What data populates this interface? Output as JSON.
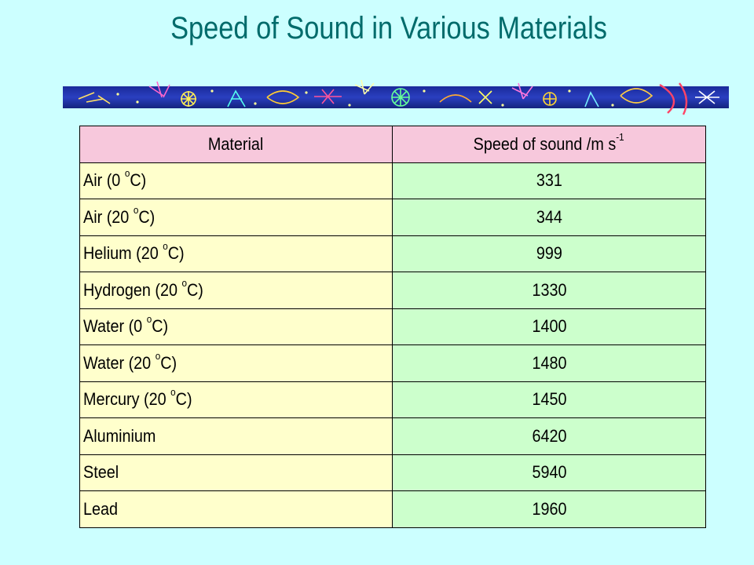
{
  "title": "Speed of Sound in Various Materials",
  "colors": {
    "background": "#ccffff",
    "title": "#006b6b",
    "header_bg": "#f7c8dc",
    "material_bg": "#ffffcc",
    "value_bg": "#ccffcc"
  },
  "table": {
    "headers": {
      "material": "Material",
      "speed_main": "Speed of sound /m s",
      "speed_sup": "-1"
    },
    "rows": [
      {
        "name": "Air (0 ",
        "deg": "o",
        "unit": "C)",
        "value": "331"
      },
      {
        "name": "Air (20 ",
        "deg": "o",
        "unit": "C)",
        "value": "344"
      },
      {
        "name": "Helium (20 ",
        "deg": "o",
        "unit": "C)",
        "value": "999"
      },
      {
        "name": "Hydrogen (20 ",
        "deg": "o",
        "unit": "C)",
        "value": "1330"
      },
      {
        "name": "Water (0 ",
        "deg": "o",
        "unit": "C)",
        "value": "1400"
      },
      {
        "name": "Water (20 ",
        "deg": "o",
        "unit": "C)",
        "value": "1480"
      },
      {
        "name": "Mercury (20 ",
        "deg": "o",
        "unit": "C)",
        "value": "1450"
      },
      {
        "name": "Aluminium",
        "deg": "",
        "unit": "",
        "value": "6420"
      },
      {
        "name": "Steel",
        "deg": "",
        "unit": "",
        "value": "5940"
      },
      {
        "name": "Lead",
        "deg": "",
        "unit": "",
        "value": "1960"
      }
    ]
  }
}
